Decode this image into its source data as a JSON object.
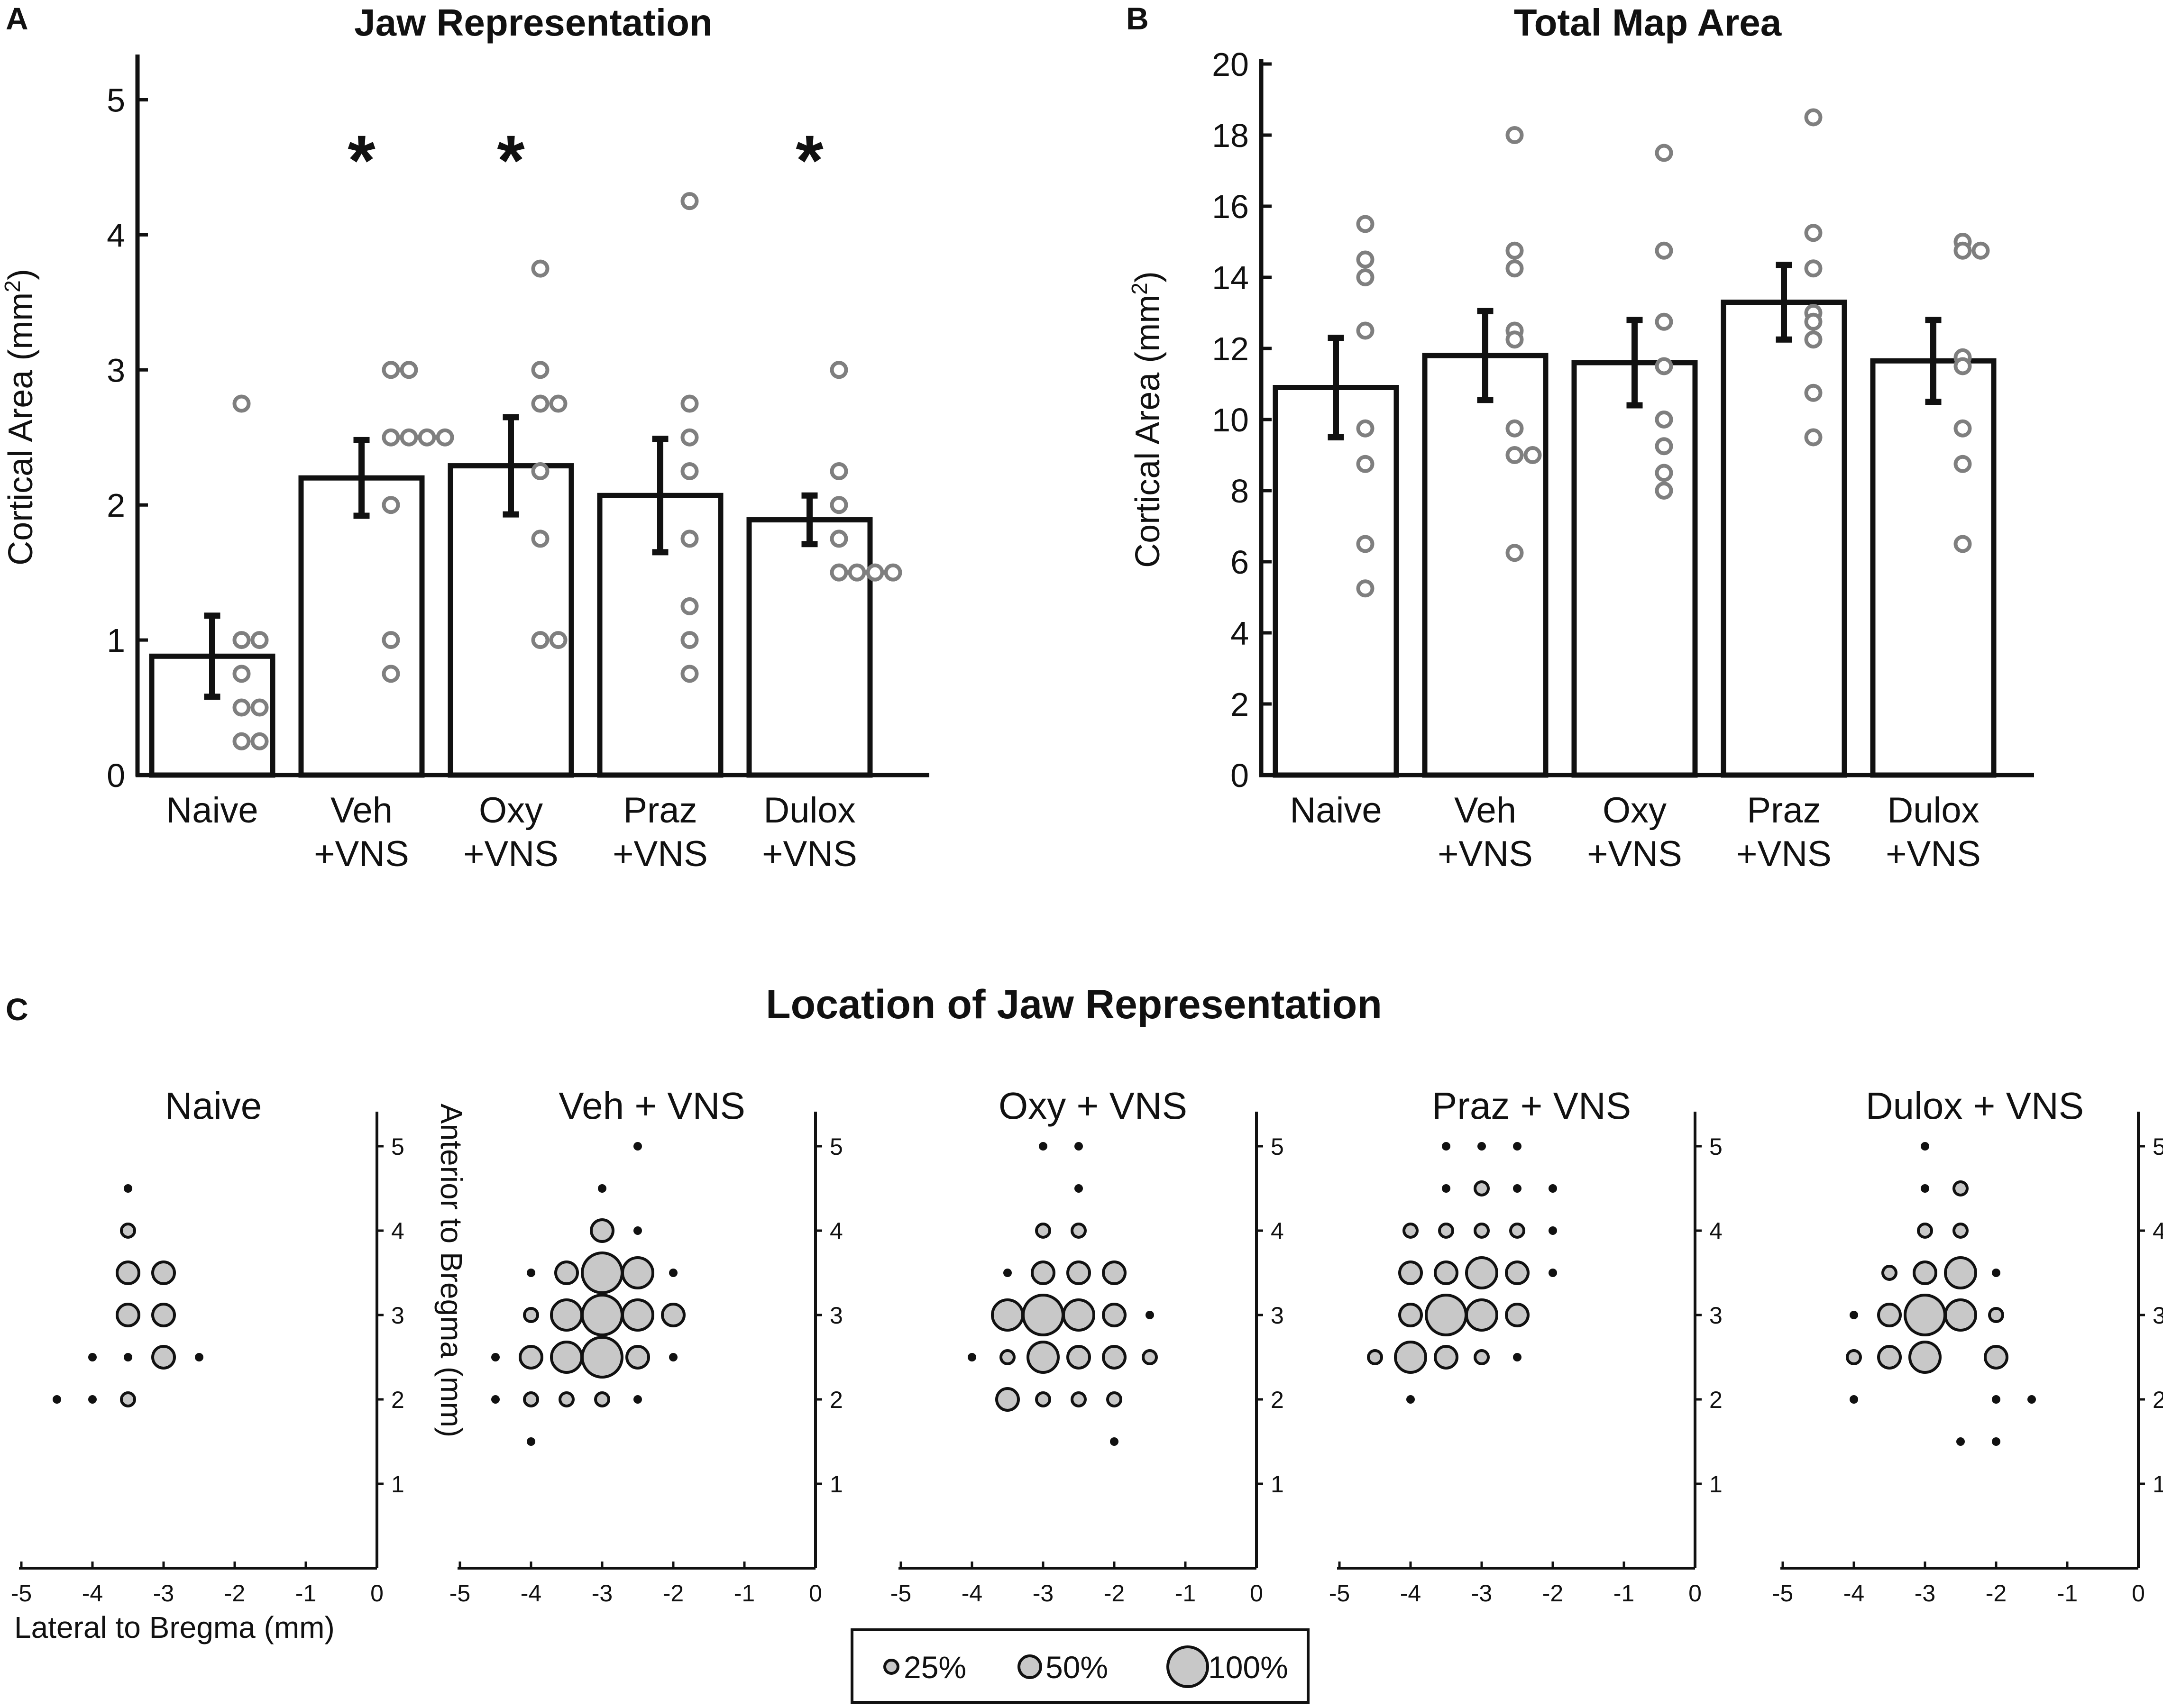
{
  "panels": {
    "a_letter": "A",
    "b_letter": "B",
    "c_letter": "C",
    "c_title": "Location of Jaw Representation"
  },
  "legend": {
    "items": [
      {
        "label": "25%",
        "level": 0.25
      },
      {
        "label": "50%",
        "level": 0.5
      },
      {
        "label": "100%",
        "level": 1.0
      }
    ]
  },
  "colors": {
    "bar_fill": "#ffffff",
    "bar_stroke": "#111111",
    "point_stroke": "#7f7f7f",
    "dot_fill": "#c8c8c8",
    "text": "#111111"
  },
  "chart_data": [
    {
      "type": "bar",
      "panel": "A",
      "title": "Jaw Representation",
      "ylabel": "Cortical Area (mm²)",
      "ylabel_main": "Cortical Area (mm",
      "ylabel_sup": "2",
      "ylabel_end": ")",
      "ylim": [
        0,
        5.3
      ],
      "yticks": [
        0,
        1,
        2,
        3,
        4,
        5
      ],
      "categories": [
        [
          "Naive"
        ],
        [
          "Veh",
          "+VNS"
        ],
        [
          "Oxy",
          "+VNS"
        ],
        [
          "Praz",
          "+VNS"
        ],
        [
          "Dulox",
          "+VNS"
        ]
      ],
      "values": [
        0.88,
        2.2,
        2.29,
        2.07,
        1.89
      ],
      "errors": [
        0.3,
        0.28,
        0.36,
        0.42,
        0.18
      ],
      "significance": [
        "",
        "*",
        "*",
        "",
        "*"
      ],
      "points": [
        [
          2.75,
          1.0,
          1.0,
          0.75,
          0.5,
          0.5,
          0.25,
          0.25
        ],
        [
          3.0,
          3.0,
          2.5,
          2.5,
          2.5,
          2.5,
          2.0,
          1.0,
          0.75
        ],
        [
          3.75,
          3.0,
          2.75,
          2.75,
          2.25,
          1.75,
          1.0,
          1.0
        ],
        [
          4.25,
          2.75,
          2.5,
          2.25,
          1.75,
          1.25,
          1.0,
          0.75
        ],
        [
          3.0,
          2.25,
          2.0,
          1.75,
          1.5,
          1.5,
          1.5,
          1.5
        ]
      ]
    },
    {
      "type": "bar",
      "panel": "B",
      "title": "Total Map Area",
      "ylabel": "Cortical Area (mm²)",
      "ylabel_main": "Cortical Area (mm",
      "ylabel_sup": "2",
      "ylabel_end": ")",
      "ylim": [
        0,
        20
      ],
      "yticks": [
        0,
        2,
        4,
        6,
        8,
        10,
        12,
        14,
        16,
        18,
        20
      ],
      "categories": [
        [
          "Naive"
        ],
        [
          "Veh",
          "+VNS"
        ],
        [
          "Oxy",
          "+VNS"
        ],
        [
          "Praz",
          "+VNS"
        ],
        [
          "Dulox",
          "+VNS"
        ]
      ],
      "values": [
        10.9,
        11.8,
        11.6,
        13.3,
        11.65
      ],
      "errors": [
        1.4,
        1.25,
        1.2,
        1.05,
        1.15
      ],
      "significance": [
        "",
        "",
        "",
        "",
        ""
      ],
      "points": [
        [
          15.5,
          14.5,
          14.0,
          12.5,
          9.75,
          8.75,
          6.5,
          5.25
        ],
        [
          18.0,
          14.75,
          14.25,
          12.5,
          12.25,
          9.75,
          9.0,
          9.0,
          6.25
        ],
        [
          17.5,
          14.75,
          12.75,
          11.5,
          10.0,
          9.25,
          8.5,
          8.0
        ],
        [
          18.5,
          15.25,
          14.25,
          13.0,
          12.75,
          12.25,
          10.75,
          9.5
        ],
        [
          15.0,
          14.75,
          14.75,
          11.75,
          11.5,
          9.75,
          8.75,
          6.5
        ]
      ]
    },
    {
      "type": "scatter",
      "panel": "C",
      "title": "Location of Jaw Representation",
      "xlabel": "Lateral to Bregma (mm)",
      "ylabel": "Anterior to Bregma (mm)",
      "xlim": [
        -5.2,
        0
      ],
      "ylim": [
        0,
        5.4
      ],
      "xticks": [
        -5,
        -4,
        -3,
        -2,
        -1,
        0
      ],
      "xtick_labels": [
        "-5",
        "-4",
        "-3",
        "-2",
        "-1",
        "0"
      ],
      "yticks": [
        1,
        2,
        3,
        4,
        5
      ],
      "ytick_labels": [
        "1",
        "2",
        "3",
        "4",
        "5"
      ],
      "groups": [
        {
          "name": "Naive",
          "points": [
            {
              "x": -3.5,
              "y": 4.5,
              "f": 0.0
            },
            {
              "x": -3.5,
              "y": 4.0,
              "f": 0.25
            },
            {
              "x": -3.5,
              "y": 3.5,
              "f": 0.5
            },
            {
              "x": -3.0,
              "y": 3.5,
              "f": 0.5
            },
            {
              "x": -3.5,
              "y": 3.0,
              "f": 0.5
            },
            {
              "x": -3.0,
              "y": 3.0,
              "f": 0.5
            },
            {
              "x": -4.0,
              "y": 2.5,
              "f": 0.0
            },
            {
              "x": -3.5,
              "y": 2.5,
              "f": 0.0
            },
            {
              "x": -3.0,
              "y": 2.5,
              "f": 0.5
            },
            {
              "x": -2.5,
              "y": 2.5,
              "f": 0.0
            },
            {
              "x": -4.5,
              "y": 2.0,
              "f": 0.0
            },
            {
              "x": -4.0,
              "y": 2.0,
              "f": 0.0
            },
            {
              "x": -3.5,
              "y": 2.0,
              "f": 0.25
            }
          ]
        },
        {
          "name": "Veh + VNS",
          "points": [
            {
              "x": -2.5,
              "y": 5.0,
              "f": 0.0
            },
            {
              "x": -3.0,
              "y": 4.5,
              "f": 0.0
            },
            {
              "x": -3.0,
              "y": 4.0,
              "f": 0.5
            },
            {
              "x": -2.5,
              "y": 4.0,
              "f": 0.0
            },
            {
              "x": -4.0,
              "y": 3.5,
              "f": 0.0
            },
            {
              "x": -3.5,
              "y": 3.5,
              "f": 0.5
            },
            {
              "x": -3.0,
              "y": 3.5,
              "f": 1.0
            },
            {
              "x": -2.5,
              "y": 3.5,
              "f": 0.75
            },
            {
              "x": -2.0,
              "y": 3.5,
              "f": 0.0
            },
            {
              "x": -4.0,
              "y": 3.0,
              "f": 0.25
            },
            {
              "x": -3.5,
              "y": 3.0,
              "f": 0.75
            },
            {
              "x": -3.0,
              "y": 3.0,
              "f": 1.0
            },
            {
              "x": -2.5,
              "y": 3.0,
              "f": 0.75
            },
            {
              "x": -2.0,
              "y": 3.0,
              "f": 0.5
            },
            {
              "x": -4.5,
              "y": 2.5,
              "f": 0.0
            },
            {
              "x": -4.0,
              "y": 2.5,
              "f": 0.5
            },
            {
              "x": -3.5,
              "y": 2.5,
              "f": 0.75
            },
            {
              "x": -3.0,
              "y": 2.5,
              "f": 1.0
            },
            {
              "x": -2.5,
              "y": 2.5,
              "f": 0.5
            },
            {
              "x": -2.0,
              "y": 2.5,
              "f": 0.0
            },
            {
              "x": -4.5,
              "y": 2.0,
              "f": 0.0
            },
            {
              "x": -4.0,
              "y": 2.0,
              "f": 0.25
            },
            {
              "x": -3.5,
              "y": 2.0,
              "f": 0.25
            },
            {
              "x": -3.0,
              "y": 2.0,
              "f": 0.25
            },
            {
              "x": -2.5,
              "y": 2.0,
              "f": 0.0
            },
            {
              "x": -4.0,
              "y": 1.5,
              "f": 0.0
            }
          ]
        },
        {
          "name": "Oxy + VNS",
          "points": [
            {
              "x": -3.0,
              "y": 5.0,
              "f": 0.0
            },
            {
              "x": -2.5,
              "y": 5.0,
              "f": 0.0
            },
            {
              "x": -2.5,
              "y": 4.5,
              "f": 0.0
            },
            {
              "x": -3.0,
              "y": 4.0,
              "f": 0.25
            },
            {
              "x": -2.5,
              "y": 4.0,
              "f": 0.25
            },
            {
              "x": -3.5,
              "y": 3.5,
              "f": 0.0
            },
            {
              "x": -3.0,
              "y": 3.5,
              "f": 0.5
            },
            {
              "x": -2.5,
              "y": 3.5,
              "f": 0.5
            },
            {
              "x": -2.0,
              "y": 3.5,
              "f": 0.5
            },
            {
              "x": -3.5,
              "y": 3.0,
              "f": 0.75
            },
            {
              "x": -3.0,
              "y": 3.0,
              "f": 1.0
            },
            {
              "x": -2.5,
              "y": 3.0,
              "f": 0.75
            },
            {
              "x": -2.0,
              "y": 3.0,
              "f": 0.5
            },
            {
              "x": -1.5,
              "y": 3.0,
              "f": 0.0
            },
            {
              "x": -4.0,
              "y": 2.5,
              "f": 0.0
            },
            {
              "x": -3.5,
              "y": 2.5,
              "f": 0.25
            },
            {
              "x": -3.0,
              "y": 2.5,
              "f": 0.75
            },
            {
              "x": -2.5,
              "y": 2.5,
              "f": 0.5
            },
            {
              "x": -2.0,
              "y": 2.5,
              "f": 0.5
            },
            {
              "x": -1.5,
              "y": 2.5,
              "f": 0.25
            },
            {
              "x": -3.5,
              "y": 2.0,
              "f": 0.5
            },
            {
              "x": -3.0,
              "y": 2.0,
              "f": 0.25
            },
            {
              "x": -2.5,
              "y": 2.0,
              "f": 0.25
            },
            {
              "x": -2.0,
              "y": 2.0,
              "f": 0.25
            },
            {
              "x": -2.0,
              "y": 1.5,
              "f": 0.0
            }
          ]
        },
        {
          "name": "Praz + VNS",
          "points": [
            {
              "x": -3.5,
              "y": 5.0,
              "f": 0.0
            },
            {
              "x": -3.0,
              "y": 5.0,
              "f": 0.0
            },
            {
              "x": -2.5,
              "y": 5.0,
              "f": 0.0
            },
            {
              "x": -3.5,
              "y": 4.5,
              "f": 0.0
            },
            {
              "x": -3.0,
              "y": 4.5,
              "f": 0.25
            },
            {
              "x": -2.5,
              "y": 4.5,
              "f": 0.0
            },
            {
              "x": -2.0,
              "y": 4.5,
              "f": 0.0
            },
            {
              "x": -4.0,
              "y": 4.0,
              "f": 0.25
            },
            {
              "x": -3.5,
              "y": 4.0,
              "f": 0.25
            },
            {
              "x": -3.0,
              "y": 4.0,
              "f": 0.25
            },
            {
              "x": -2.5,
              "y": 4.0,
              "f": 0.25
            },
            {
              "x": -2.0,
              "y": 4.0,
              "f": 0.0
            },
            {
              "x": -4.0,
              "y": 3.5,
              "f": 0.5
            },
            {
              "x": -3.5,
              "y": 3.5,
              "f": 0.5
            },
            {
              "x": -3.0,
              "y": 3.5,
              "f": 0.75
            },
            {
              "x": -2.5,
              "y": 3.5,
              "f": 0.5
            },
            {
              "x": -2.0,
              "y": 3.5,
              "f": 0.0
            },
            {
              "x": -4.0,
              "y": 3.0,
              "f": 0.5
            },
            {
              "x": -3.5,
              "y": 3.0,
              "f": 1.0
            },
            {
              "x": -3.0,
              "y": 3.0,
              "f": 0.75
            },
            {
              "x": -2.5,
              "y": 3.0,
              "f": 0.5
            },
            {
              "x": -4.5,
              "y": 2.5,
              "f": 0.25
            },
            {
              "x": -4.0,
              "y": 2.5,
              "f": 0.75
            },
            {
              "x": -3.5,
              "y": 2.5,
              "f": 0.5
            },
            {
              "x": -3.0,
              "y": 2.5,
              "f": 0.25
            },
            {
              "x": -2.5,
              "y": 2.5,
              "f": 0.0
            },
            {
              "x": -4.0,
              "y": 2.0,
              "f": 0.0
            }
          ]
        },
        {
          "name": "Dulox + VNS",
          "points": [
            {
              "x": -3.0,
              "y": 5.0,
              "f": 0.0
            },
            {
              "x": -3.0,
              "y": 4.5,
              "f": 0.0
            },
            {
              "x": -2.5,
              "y": 4.5,
              "f": 0.25
            },
            {
              "x": -3.0,
              "y": 4.0,
              "f": 0.25
            },
            {
              "x": -2.5,
              "y": 4.0,
              "f": 0.25
            },
            {
              "x": -3.5,
              "y": 3.5,
              "f": 0.25
            },
            {
              "x": -3.0,
              "y": 3.5,
              "f": 0.5
            },
            {
              "x": -2.5,
              "y": 3.5,
              "f": 0.75
            },
            {
              "x": -2.0,
              "y": 3.5,
              "f": 0.0
            },
            {
              "x": -4.0,
              "y": 3.0,
              "f": 0.0
            },
            {
              "x": -3.5,
              "y": 3.0,
              "f": 0.5
            },
            {
              "x": -3.0,
              "y": 3.0,
              "f": 1.0
            },
            {
              "x": -2.5,
              "y": 3.0,
              "f": 0.75
            },
            {
              "x": -2.0,
              "y": 3.0,
              "f": 0.25
            },
            {
              "x": -4.0,
              "y": 2.5,
              "f": 0.25
            },
            {
              "x": -3.5,
              "y": 2.5,
              "f": 0.5
            },
            {
              "x": -3.0,
              "y": 2.5,
              "f": 0.75
            },
            {
              "x": -2.0,
              "y": 2.5,
              "f": 0.5
            },
            {
              "x": -4.0,
              "y": 2.0,
              "f": 0.0
            },
            {
              "x": -2.0,
              "y": 2.0,
              "f": 0.0
            },
            {
              "x": -1.5,
              "y": 2.0,
              "f": 0.0
            },
            {
              "x": -2.5,
              "y": 1.5,
              "f": 0.0
            },
            {
              "x": -2.0,
              "y": 1.5,
              "f": 0.0
            }
          ]
        }
      ]
    }
  ]
}
